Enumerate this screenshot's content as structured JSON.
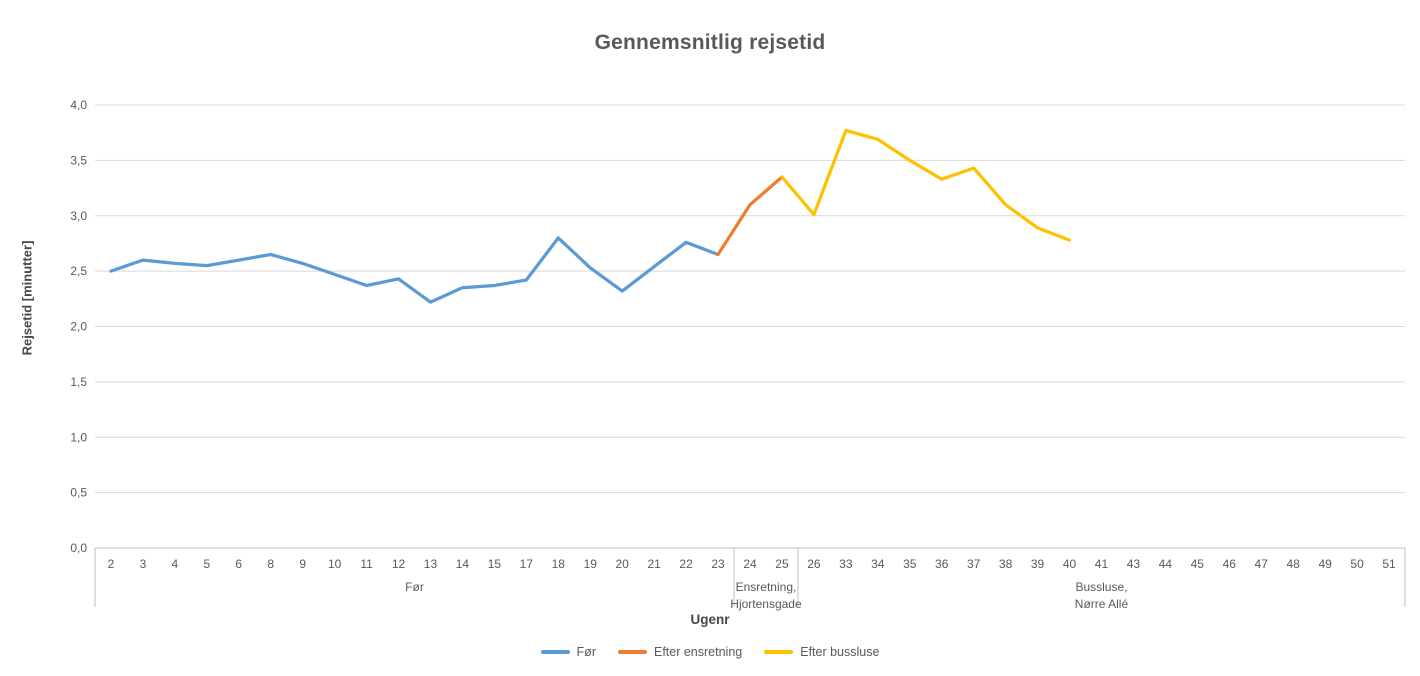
{
  "title": "Gennemsnitlig rejsetid",
  "colors": {
    "series_blue": "#5B9BD5",
    "series_orange": "#ED7D31",
    "series_yellow": "#FFC000",
    "gridline": "#D9D9D9",
    "axis_line": "#BFBFBF",
    "text_gray": "#595959"
  },
  "chart_data": {
    "type": "line",
    "title": "Gennemsnitlig rejsetid",
    "xlabel": "Ugenr",
    "ylabel": "Rejsetid [minutter]",
    "ylim": [
      0,
      4
    ],
    "grid": true,
    "legend_position": "bottom",
    "yticks": [
      {
        "value": 0.0,
        "label": "0,0"
      },
      {
        "value": 0.5,
        "label": "0,5"
      },
      {
        "value": 1.0,
        "label": "1,0"
      },
      {
        "value": 1.5,
        "label": "1,5"
      },
      {
        "value": 2.0,
        "label": "2,0"
      },
      {
        "value": 2.5,
        "label": "2,5"
      },
      {
        "value": 3.0,
        "label": "3,0"
      },
      {
        "value": 3.5,
        "label": "3,5"
      },
      {
        "value": 4.0,
        "label": "4,0"
      }
    ],
    "categories": [
      "2",
      "3",
      "4",
      "5",
      "6",
      "8",
      "9",
      "10",
      "11",
      "12",
      "13",
      "14",
      "15",
      "17",
      "18",
      "19",
      "20",
      "21",
      "22",
      "23",
      "24",
      "25",
      "26",
      "33",
      "34",
      "35",
      "36",
      "37",
      "38",
      "39",
      "40",
      "41",
      "43",
      "44",
      "45",
      "46",
      "47",
      "48",
      "49",
      "50",
      "51"
    ],
    "category_groups": [
      {
        "label": "Før",
        "start": 0,
        "end": 19
      },
      {
        "label": "Ensretning,\nHjortensgade",
        "start": 20,
        "end": 21
      },
      {
        "label": "Bussluse,\nNørre Allé",
        "start": 22,
        "end": 40
      }
    ],
    "series": [
      {
        "name": "Før",
        "color": "#5B9BD5",
        "values": [
          2.5,
          2.6,
          2.57,
          2.55,
          2.6,
          2.65,
          2.57,
          2.47,
          2.37,
          2.43,
          2.22,
          2.35,
          2.37,
          2.42,
          2.8,
          2.53,
          2.32,
          2.54,
          2.76,
          2.65,
          null,
          null,
          null,
          null,
          null,
          null,
          null,
          null,
          null,
          null,
          null,
          null,
          null,
          null,
          null,
          null,
          null,
          null,
          null,
          null,
          null
        ]
      },
      {
        "name": "Efter ensretning",
        "color": "#ED7D31",
        "values": [
          null,
          null,
          null,
          null,
          null,
          null,
          null,
          null,
          null,
          null,
          null,
          null,
          null,
          null,
          null,
          null,
          null,
          null,
          null,
          2.65,
          3.1,
          3.35,
          null,
          null,
          null,
          null,
          null,
          null,
          null,
          null,
          null,
          null,
          null,
          null,
          null,
          null,
          null,
          null,
          null,
          null,
          null
        ]
      },
      {
        "name": "Efter bussluse",
        "color": "#FFC000",
        "values": [
          null,
          null,
          null,
          null,
          null,
          null,
          null,
          null,
          null,
          null,
          null,
          null,
          null,
          null,
          null,
          null,
          null,
          null,
          null,
          null,
          null,
          3.35,
          3.01,
          3.77,
          3.69,
          3.5,
          3.33,
          3.43,
          3.1,
          2.89,
          2.78,
          null,
          null,
          null,
          null,
          null,
          null,
          null,
          null,
          null,
          null
        ]
      }
    ]
  }
}
